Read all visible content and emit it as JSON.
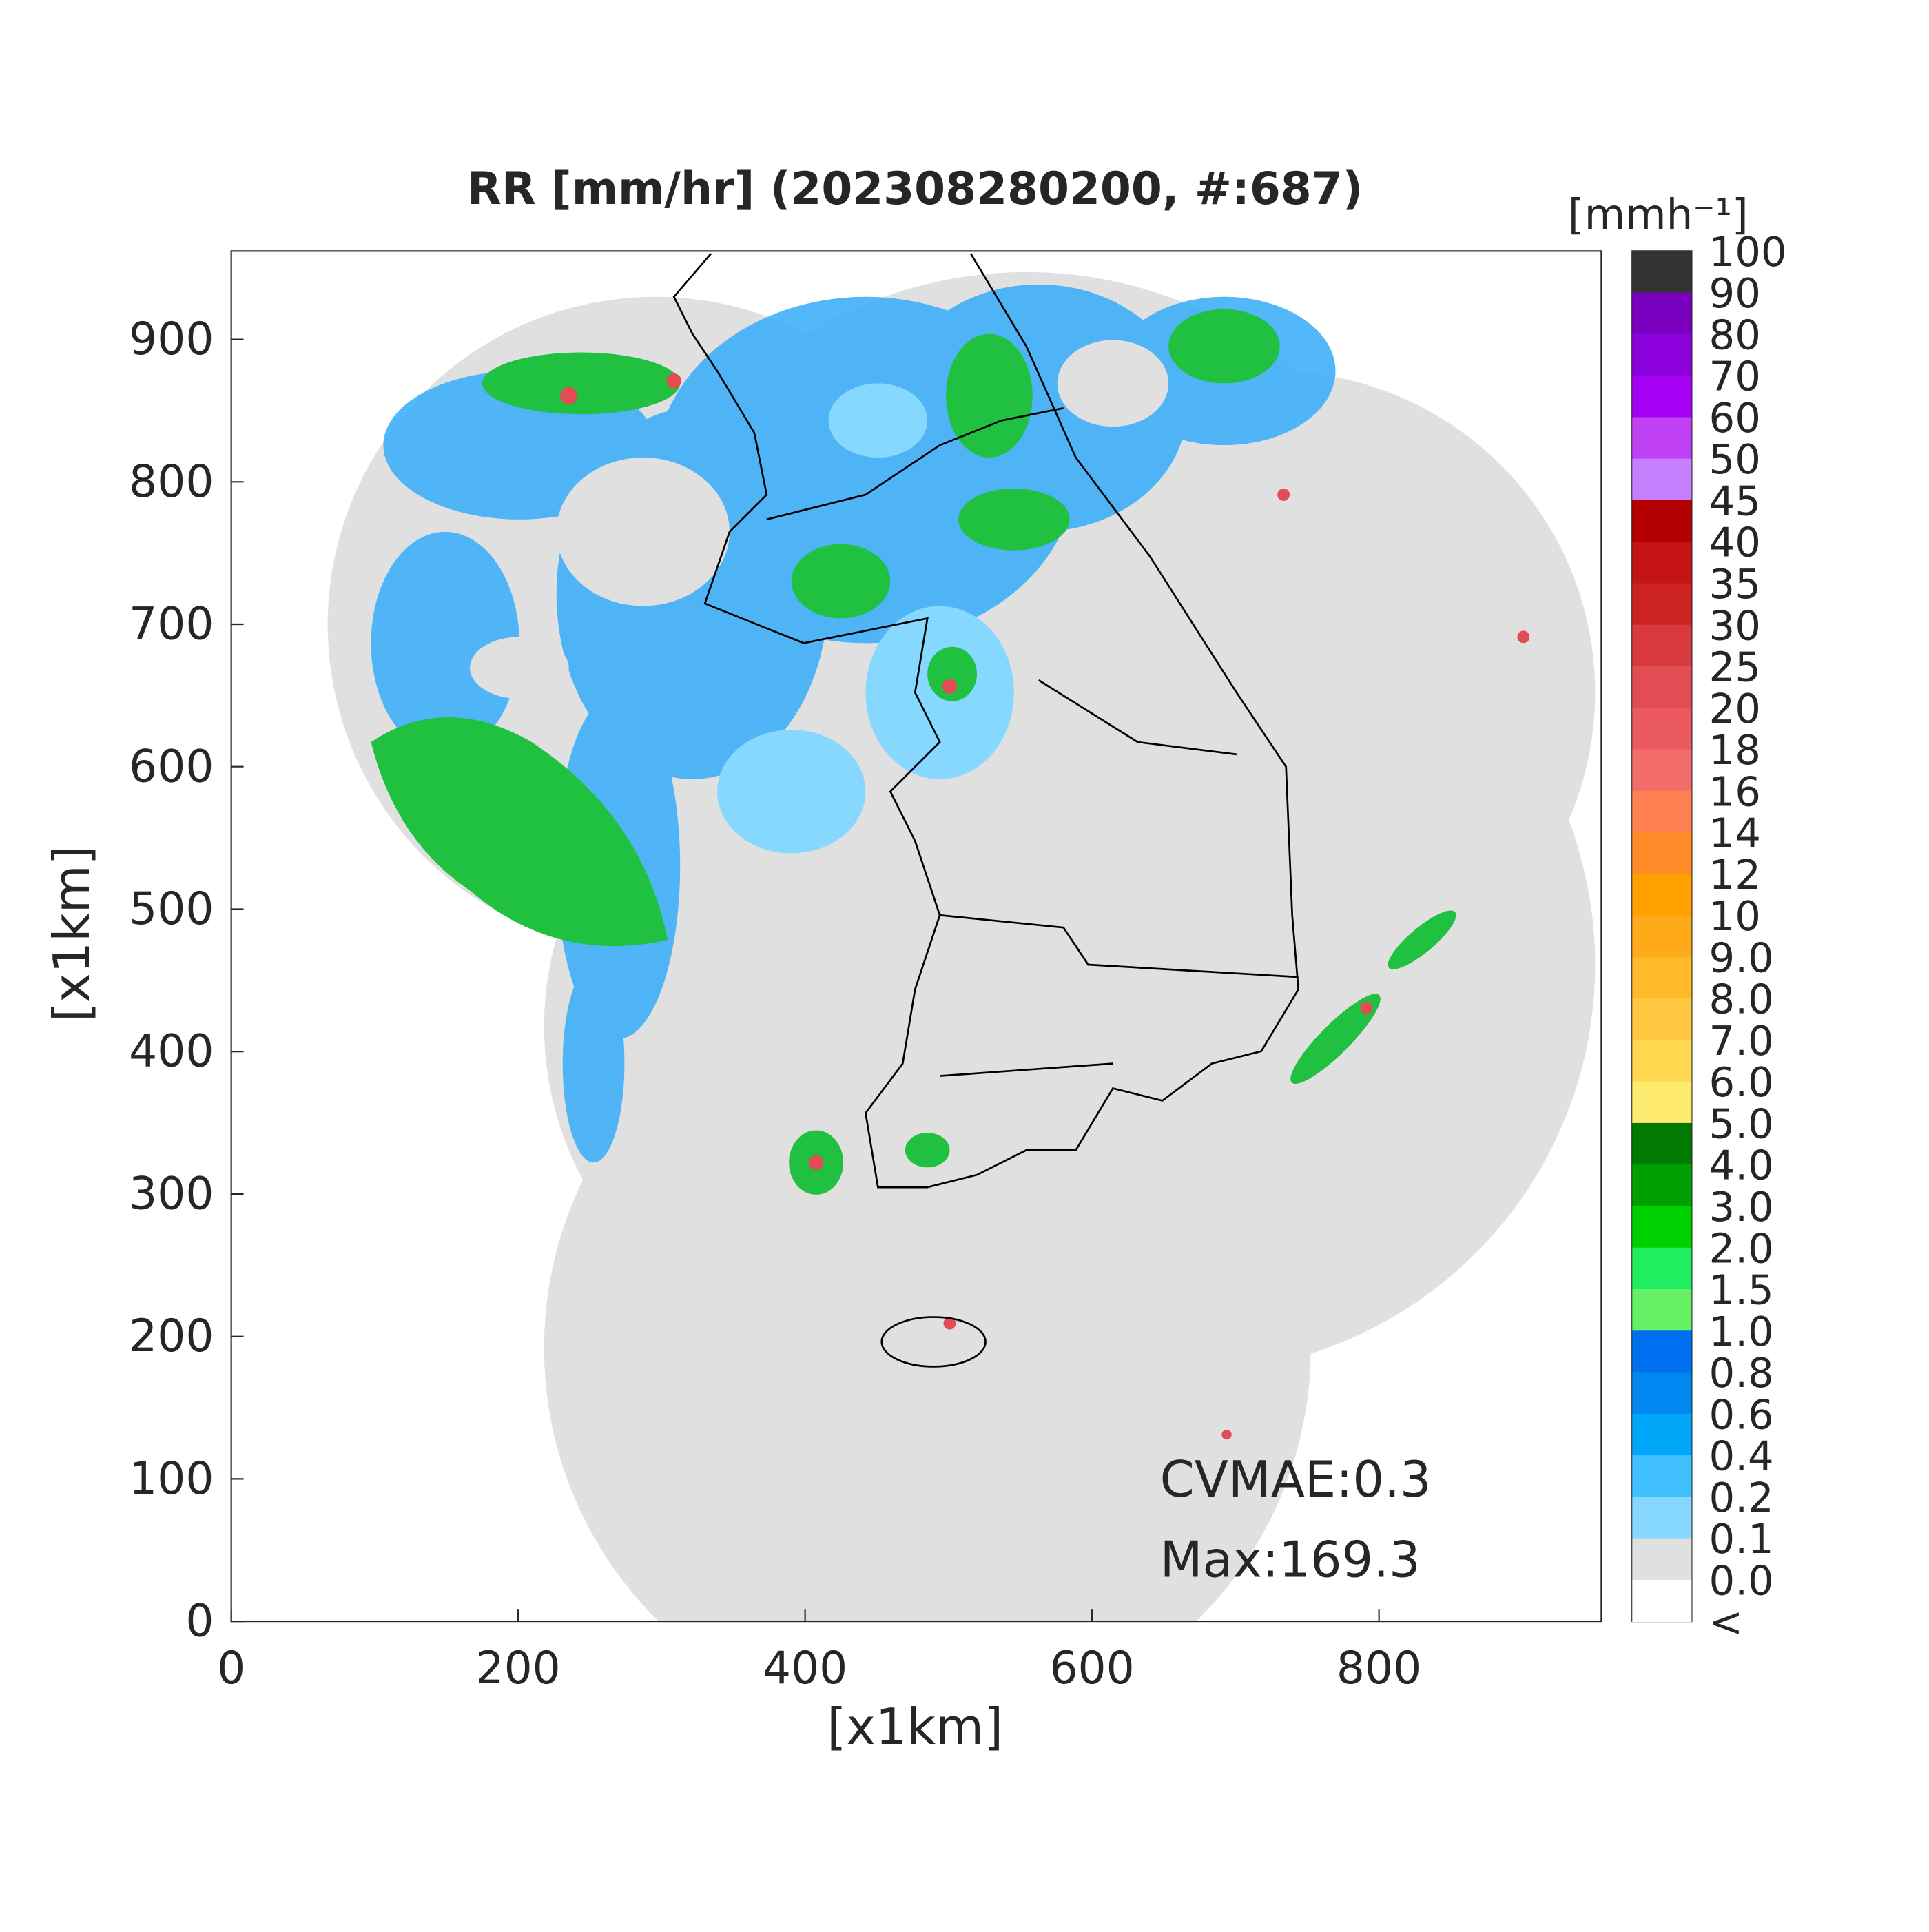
{
  "title": "RR [mm/hr] (202308280200, #:687)",
  "x_axis": {
    "label": "[x1km]",
    "lim": [
      0,
      955
    ],
    "ticks": [
      0,
      200,
      400,
      600,
      800
    ]
  },
  "y_axis": {
    "label": "[x1km]",
    "lim": [
      0,
      962
    ],
    "ticks": [
      0,
      100,
      200,
      300,
      400,
      500,
      600,
      700,
      800,
      900
    ]
  },
  "colorbar": {
    "unit": "[mmh⁻¹]",
    "labels": [
      "100",
      "90",
      "80",
      "70",
      "60",
      "50",
      "45",
      "40",
      "35",
      "30",
      "25",
      "20",
      "18",
      "16",
      "14",
      "12",
      "10",
      "9.0",
      "8.0",
      "7.0",
      "6.0",
      "5.0",
      "4.0",
      "3.0",
      "2.0",
      "1.5",
      "1.0",
      "0.8",
      "0.6",
      "0.4",
      "0.2",
      "0.1",
      "0.0",
      "<"
    ],
    "colors": [
      "#333333",
      "#7a00c0",
      "#8c00dc",
      "#a400f4",
      "#c040f4",
      "#c480ff",
      "#b40000",
      "#c41414",
      "#cc2222",
      "#d83a40",
      "#e24c54",
      "#ea5a60",
      "#f26c6c",
      "#ff8050",
      "#ff8c28",
      "#ffa000",
      "#ffaa18",
      "#ffba2c",
      "#ffc840",
      "#ffd850",
      "#ffea70",
      "#007a00",
      "#00a000",
      "#00d000",
      "#20ee60",
      "#66f066",
      "#0070f0",
      "#0088f0",
      "#00a6f8",
      "#40c0ff",
      "#86d8ff",
      "#e0e0e0",
      "#ffffff"
    ]
  },
  "annotations": [
    "CVMAE:0.3",
    "Max:169.3"
  ]
}
